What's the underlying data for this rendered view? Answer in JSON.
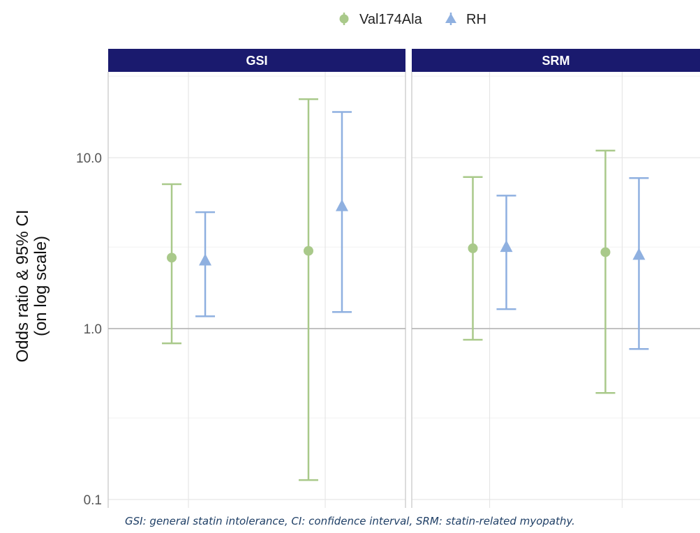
{
  "chart_data": {
    "type": "errorbar",
    "y_scale": "log",
    "ylabel_line1": "Odds ratio & 95% CI",
    "ylabel_line2": "(on log scale)",
    "ylim": [
      0.1,
      30
    ],
    "y_ticks": [
      "0.1",
      "1.0",
      "10.0"
    ],
    "y_tick_values": [
      0.1,
      1.0,
      10.0
    ],
    "reference_line": 1.0,
    "grid": true,
    "legend_position": "top",
    "legend": [
      {
        "name": "Val174Ala",
        "marker": "circle",
        "color": "#a9c98a"
      },
      {
        "name": "RH",
        "marker": "triangle",
        "color": "#8fb0e0"
      }
    ],
    "facet_strip_color": "#1a1a6e",
    "panels": [
      {
        "title": "GSI",
        "groups": [
          {
            "series": "Val174Ala",
            "x": 1,
            "estimate": 2.6,
            "lower": 0.82,
            "upper": 7.0
          },
          {
            "series": "RH",
            "x": 1,
            "estimate": 2.5,
            "lower": 1.18,
            "upper": 4.8
          },
          {
            "series": "Val174Ala",
            "x": 2,
            "estimate": 2.85,
            "lower": 0.13,
            "upper": 22.0
          },
          {
            "series": "RH",
            "x": 2,
            "estimate": 5.2,
            "lower": 1.25,
            "upper": 18.5
          }
        ]
      },
      {
        "title": "SRM",
        "groups": [
          {
            "series": "Val174Ala",
            "x": 1,
            "estimate": 2.95,
            "lower": 0.86,
            "upper": 7.7
          },
          {
            "series": "RH",
            "x": 1,
            "estimate": 3.0,
            "lower": 1.3,
            "upper": 6.0
          },
          {
            "series": "Val174Ala",
            "x": 2,
            "estimate": 2.8,
            "lower": 0.42,
            "upper": 11.0
          },
          {
            "series": "RH",
            "x": 2,
            "estimate": 2.7,
            "lower": 0.76,
            "upper": 7.6
          }
        ]
      }
    ]
  },
  "caption": "GSI: general statin intolerance, CI: confidence interval, SRM: statin-related myopathy."
}
